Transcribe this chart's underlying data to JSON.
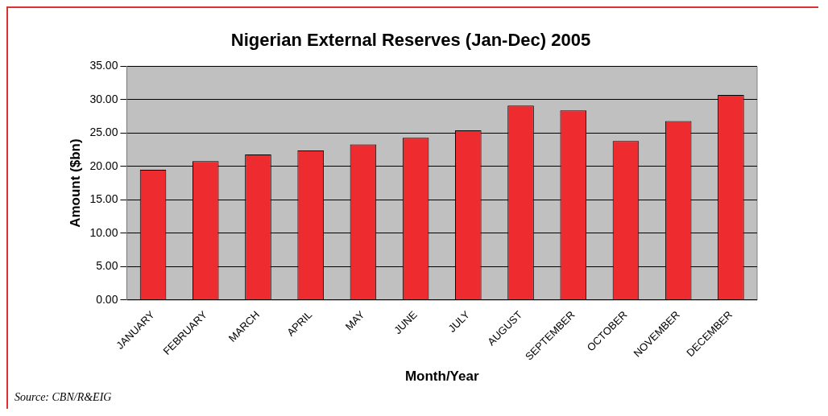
{
  "chart_data": {
    "type": "bar",
    "title": "Nigerian External Reserves (Jan-Dec) 2005",
    "xlabel": "Month/Year",
    "ylabel": "Amount ($bn)",
    "categories": [
      "JANUARY",
      "FEBRUARY",
      "MARCH",
      "APRIL",
      "MAY",
      "JUNE",
      "JULY",
      "AUGUST",
      "SEPTEMBER",
      "OCTOBER",
      "NOVEMBER",
      "DECEMBER"
    ],
    "values": [
      19.5,
      20.8,
      21.8,
      22.4,
      23.3,
      24.3,
      25.4,
      29.1,
      28.4,
      23.8,
      26.8,
      30.7
    ],
    "color": "#ee2b2e",
    "ylim": [
      0,
      35
    ],
    "yticks": [
      {
        "value": 0,
        "label": "0.00"
      },
      {
        "value": 5,
        "label": "5.00"
      },
      {
        "value": 10,
        "label": "10.00"
      },
      {
        "value": 15,
        "label": "15.00"
      },
      {
        "value": 20,
        "label": "20.00"
      },
      {
        "value": 25,
        "label": "25.00"
      },
      {
        "value": 30,
        "label": "30.00"
      },
      {
        "value": 35,
        "label": "35.00"
      }
    ],
    "grid": "y",
    "annotations": [
      "Source: CBN/R&EIG"
    ]
  }
}
